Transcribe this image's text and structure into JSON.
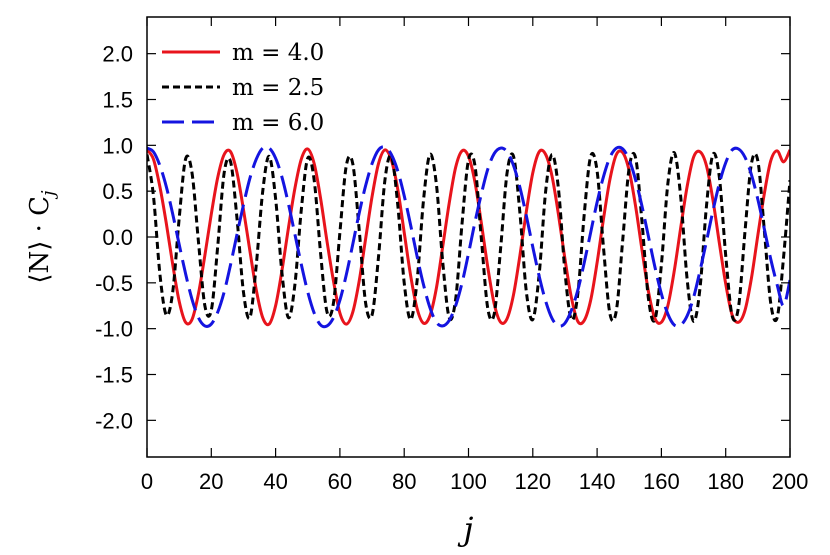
{
  "chart_data": {
    "type": "line",
    "xlabel": "j",
    "ylabel": "⟨N⟩ · C",
    "ylabel_subscript": "j",
    "xlim": [
      0,
      200
    ],
    "ylim": [
      -2.4,
      2.4
    ],
    "x_ticks": [
      0,
      20,
      40,
      60,
      80,
      100,
      120,
      140,
      160,
      180,
      200
    ],
    "x_tick_labels": [
      "0",
      "20",
      "40",
      "60",
      "80",
      "100",
      "120",
      "140",
      "160",
      "180",
      "200"
    ],
    "y_ticks": [
      2.0,
      1.5,
      1.0,
      0.5,
      0.0,
      -0.5,
      -1.0,
      -1.5,
      -2.0
    ],
    "y_tick_labels": [
      "2.0",
      "1.5",
      "1.0",
      "0.5",
      "0.0",
      "-0.5",
      "-1.0",
      "-1.5",
      "-2.0"
    ],
    "grid": false,
    "legend_position": "top-left",
    "x": [
      0,
      2,
      4,
      6,
      8,
      10,
      12,
      14,
      16,
      18,
      20,
      22,
      24,
      26,
      28,
      30,
      32,
      34,
      36,
      38,
      40,
      42,
      44,
      46,
      48,
      50,
      52,
      54,
      56,
      58,
      60,
      62,
      64,
      66,
      68,
      70,
      72,
      74,
      76,
      78,
      80,
      82,
      84,
      86,
      88,
      90,
      92,
      94,
      96,
      98,
      100,
      102,
      104,
      106,
      108,
      110,
      112,
      114,
      116,
      118,
      120,
      122,
      124,
      126,
      128,
      130,
      132,
      134,
      136,
      138,
      140,
      142,
      144,
      146,
      148,
      150,
      152,
      154,
      156,
      158,
      160,
      162,
      164,
      166,
      168,
      170,
      172,
      174,
      176,
      178,
      180,
      182,
      184,
      186,
      188,
      190,
      192,
      194,
      196,
      198,
      200
    ],
    "series": [
      {
        "name": "m = 4.0",
        "color": "#e8141c",
        "dash": "solid",
        "values": [
          0.95,
          0.85,
          0.55,
          0.15,
          -0.3,
          -0.7,
          -0.93,
          -0.9,
          -0.62,
          -0.2,
          0.25,
          0.65,
          0.9,
          0.93,
          0.7,
          0.3,
          -0.15,
          -0.58,
          -0.88,
          -0.95,
          -0.75,
          -0.36,
          0.1,
          0.53,
          0.85,
          0.96,
          0.8,
          0.42,
          -0.05,
          -0.48,
          -0.83,
          -0.95,
          -0.82,
          -0.48,
          -0.02,
          0.44,
          0.8,
          0.95,
          0.84,
          0.52,
          0.05,
          -0.42,
          -0.78,
          -0.94,
          -0.86,
          -0.56,
          -0.1,
          0.37,
          0.76,
          0.94,
          0.88,
          0.6,
          0.15,
          -0.33,
          -0.73,
          -0.93,
          -0.89,
          -0.63,
          -0.2,
          0.28,
          0.7,
          0.93,
          0.9,
          0.66,
          0.24,
          -0.24,
          -0.66,
          -0.92,
          -0.91,
          -0.69,
          -0.28,
          0.2,
          0.63,
          0.9,
          0.92,
          0.72,
          0.33,
          -0.15,
          -0.6,
          -0.89,
          -0.93,
          -0.75,
          -0.37,
          0.1,
          0.55,
          0.87,
          0.93,
          0.78,
          0.41,
          -0.06,
          -0.51,
          -0.85,
          -0.93,
          -0.8,
          -0.45,
          0.02,
          0.47,
          0.83,
          0.94,
          0.82,
          0.95
        ]
      },
      {
        "name": "m = 2.5",
        "color": "#000000",
        "dash": "short-dash",
        "values": [
          0.9,
          0.45,
          -0.4,
          -0.85,
          -0.6,
          0.2,
          0.85,
          0.7,
          -0.05,
          -0.75,
          -0.8,
          -0.1,
          0.7,
          0.82,
          0.2,
          -0.6,
          -0.88,
          -0.3,
          0.5,
          0.88,
          0.42,
          -0.4,
          -0.88,
          -0.52,
          0.3,
          0.86,
          0.62,
          -0.18,
          -0.82,
          -0.72,
          0.05,
          0.78,
          0.8,
          0.08,
          -0.72,
          -0.85,
          -0.22,
          0.62,
          0.88,
          0.35,
          -0.5,
          -0.9,
          -0.48,
          0.4,
          0.9,
          0.58,
          -0.28,
          -0.88,
          -0.68,
          0.15,
          0.84,
          0.78,
          -0.02,
          -0.78,
          -0.84,
          -0.12,
          0.7,
          0.88,
          0.26,
          -0.6,
          -0.9,
          -0.4,
          0.5,
          0.9,
          0.52,
          -0.38,
          -0.9,
          -0.62,
          0.25,
          0.88,
          0.72,
          -0.12,
          -0.84,
          -0.8,
          -0.02,
          0.76,
          0.86,
          0.15,
          -0.68,
          -0.9,
          -0.3,
          0.58,
          0.92,
          0.44,
          -0.46,
          -0.92,
          -0.56,
          0.33,
          0.9,
          0.66,
          -0.2,
          -0.86,
          -0.76,
          0.06,
          0.8,
          0.83,
          0.08,
          -0.72,
          -0.88,
          -0.22,
          0.62
        ]
      },
      {
        "name": "m = 6.0",
        "color": "#1414e0",
        "dash": "long-dash",
        "values": [
          0.97,
          0.93,
          0.78,
          0.55,
          0.25,
          -0.08,
          -0.4,
          -0.68,
          -0.88,
          -0.97,
          -0.95,
          -0.82,
          -0.6,
          -0.3,
          0.03,
          0.35,
          0.64,
          0.85,
          0.97,
          0.97,
          0.86,
          0.65,
          0.36,
          0.03,
          -0.3,
          -0.6,
          -0.83,
          -0.96,
          -0.97,
          -0.88,
          -0.69,
          -0.41,
          -0.08,
          0.26,
          0.56,
          0.8,
          0.95,
          0.98,
          0.9,
          0.72,
          0.45,
          0.13,
          -0.21,
          -0.52,
          -0.77,
          -0.93,
          -0.97,
          -0.91,
          -0.75,
          -0.5,
          -0.18,
          0.16,
          0.47,
          0.74,
          0.91,
          0.97,
          0.93,
          0.78,
          0.54,
          0.23,
          -0.11,
          -0.43,
          -0.7,
          -0.89,
          -0.97,
          -0.94,
          -0.8,
          -0.58,
          -0.28,
          0.05,
          0.38,
          0.66,
          0.87,
          0.97,
          0.96,
          0.84,
          0.62,
          0.33,
          0.0,
          -0.33,
          -0.62,
          -0.84,
          -0.96,
          -0.96,
          -0.86,
          -0.66,
          -0.37,
          -0.05,
          0.28,
          0.58,
          0.81,
          0.95,
          0.96,
          0.87,
          0.68,
          0.41,
          0.09,
          -0.24,
          -0.52,
          -0.75,
          -0.47
        ]
      }
    ]
  }
}
